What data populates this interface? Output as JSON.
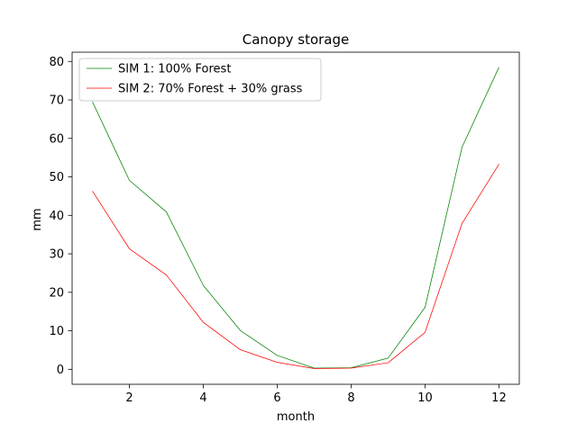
{
  "chart_data": {
    "type": "line",
    "title": "Canopy storage",
    "xlabel": "month",
    "ylabel": "mm",
    "xlim": [
      0.45,
      12.55
    ],
    "ylim": [
      -3.9,
      82.4
    ],
    "xticks": [
      2,
      4,
      6,
      8,
      10,
      12
    ],
    "yticks": [
      0,
      10,
      20,
      30,
      40,
      50,
      60,
      70,
      80
    ],
    "grid": false,
    "legend_position": "upper-left",
    "x": [
      1,
      2,
      3,
      4,
      5,
      6,
      7,
      8,
      9,
      10,
      11,
      12
    ],
    "series": [
      {
        "name": "SIM 1: 100% Forest",
        "color": "#008000",
        "values": [
          69.5,
          49.1,
          40.9,
          21.8,
          10.1,
          3.6,
          0.3,
          0.4,
          2.9,
          16.1,
          57.7,
          78.5
        ]
      },
      {
        "name": "SIM 2: 70% Forest + 30% grass",
        "color": "#ff0000",
        "values": [
          46.3,
          31.3,
          24.5,
          12.2,
          5.1,
          1.8,
          0.2,
          0.3,
          1.7,
          9.6,
          37.9,
          53.3
        ]
      }
    ]
  }
}
